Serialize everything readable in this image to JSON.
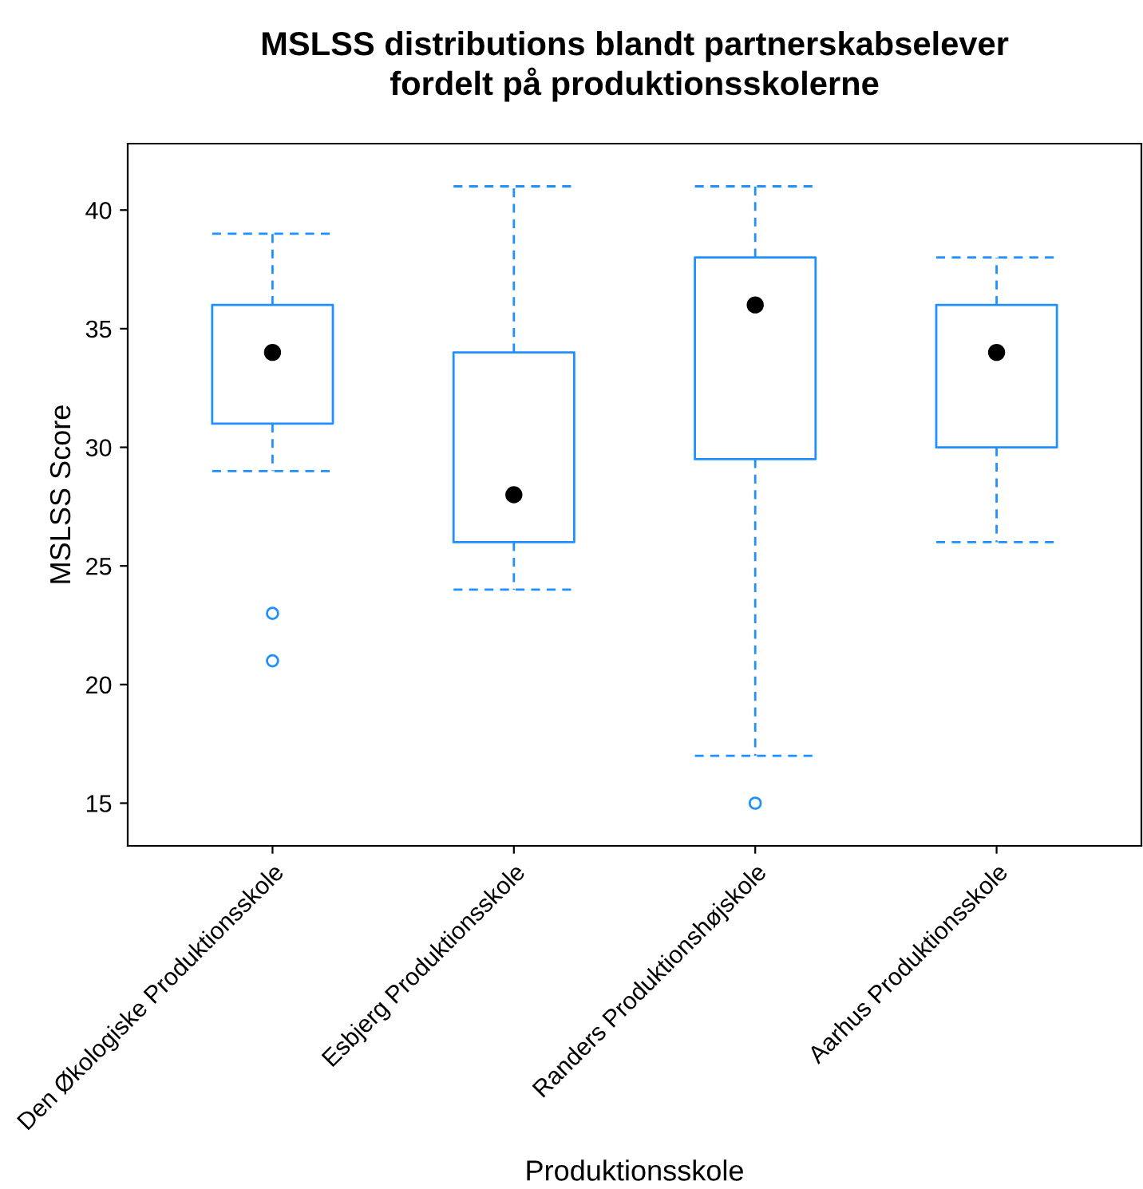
{
  "chart_data": {
    "type": "box",
    "title": "MSLSS distributions blandt partnerskabselever\nfordelt på produktionsskolerne",
    "xlabel": "Produktionsskole",
    "ylabel": "MSLSS Score",
    "categories": [
      "Den Økologiske Produktionsskole",
      "Esbjerg Produktionsskole",
      "Randers Produktionshøjskole",
      "Aarhus Produktionsskole"
    ],
    "boxes": [
      {
        "low": 29,
        "q1": 31,
        "median": 34,
        "q3": 36,
        "high": 39,
        "outliers": [
          23,
          21
        ]
      },
      {
        "low": 24,
        "q1": 26,
        "median": 28,
        "q3": 34,
        "high": 41
      },
      {
        "low": 17,
        "q1": 29.5,
        "median": 36,
        "q3": 38,
        "high": 41,
        "outliers": [
          15
        ]
      },
      {
        "low": 26,
        "q1": 30,
        "median": 34,
        "q3": 36,
        "high": 38
      }
    ],
    "color": "#1e90ff",
    "ylim": [
      13.2,
      42.8
    ],
    "yticks": [
      15,
      20,
      25,
      30,
      35,
      40
    ],
    "grid": false
  }
}
